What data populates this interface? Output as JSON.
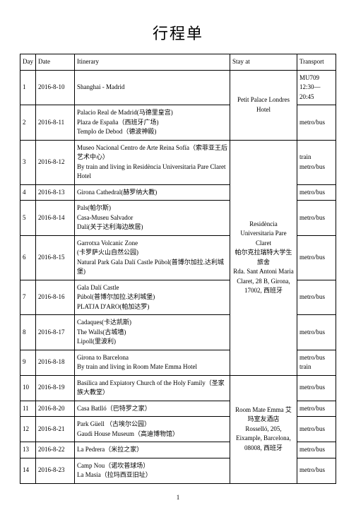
{
  "title": "行程单",
  "headers": {
    "day": "Day",
    "date": "Date",
    "itinerary": "Itinerary",
    "stay": "Stay at",
    "transport": "Transport"
  },
  "stays": {
    "s1": "Petit Palace Londres Hotel",
    "s2": "Residència Universitaria Pare Claret\n帕尔克拉瑞特大学生旅舍\nRda. Sant Antoni Maria Claret, 28 B, Girona, 17002, 西班牙",
    "s3": "Room Mate Emma 艾玛室友酒店\nRosselló, 205, Eixample, Barcelona, 08008, 西班牙"
  },
  "rows": [
    {
      "day": "1",
      "date": "2016-8-10",
      "itin": "Shanghai - Madrid",
      "trans": "MU709 12:30—20:45"
    },
    {
      "day": "2",
      "date": "2016-8-11",
      "itin": "Palacio Real de Madrid(马德里皇宫)\nPlaza de España（西班牙广场)\nTemplo de Debod（德波神殿)",
      "trans": "metro/bus"
    },
    {
      "day": "3",
      "date": "2016-8-12",
      "itin": "Museo Nacional Centro de Arte Reina Sofía（索菲亚王后艺术中心）\nBy train and living in  Residència Universitaria Pare Claret\nHotel",
      "trans": "train\nmetro/bus"
    },
    {
      "day": "4",
      "date": "2016-8-13",
      "itin": "Girona Cathedral(赫罗纳大教)",
      "trans": "metro/bus"
    },
    {
      "day": "5",
      "date": "2016-8-14",
      "itin": "Pals(帕尔斯)\nCasa-Museu Salvador\nDalí(关于达利海边故居)",
      "trans": "metro/bus"
    },
    {
      "day": "6",
      "date": "2016-8-15",
      "itin": "Garrotxa Volcanic Zone\n(卡罗萨火山自然公园)\nNatural Park Gala Dalí Castle Púbol(普博尔加拉.达利城堡)",
      "trans": "metro/bus"
    },
    {
      "day": "7",
      "date": "2016-8-16",
      "itin": "Gala Dalí Castle\nPúbol(普博尔加拉.达利城堡)\nPLATJA D'ARO(帕加达罗)",
      "trans": "metro/bus"
    },
    {
      "day": "8",
      "date": "2016-8-17",
      "itin": "Cadaques(卡达凯斯)\nThe Walls(古城墙)\nLipoll(里波利)",
      "trans": "metro/bus"
    },
    {
      "day": "9",
      "date": "2016-8-18",
      "itin": "Girona to Barcelona\nBy train and living in Room Mate Emma Hotel",
      "trans": "metro/bus\ntrain"
    },
    {
      "day": "10",
      "date": "2016-8-19",
      "itin": "Basilica and Expiatory Church of the Holy Family（圣家族大教堂）",
      "trans": "metro/bus"
    },
    {
      "day": "11",
      "date": "2016-8-20",
      "itin": "Casa Batlló（巴特罗之家）",
      "trans": "metro/bus"
    },
    {
      "day": "12",
      "date": "2016-8-21",
      "itin": "Park Güell （古埃尔公园）\nGaudi House Museum（高迪博物馆）",
      "trans": "metro/bus"
    },
    {
      "day": "13",
      "date": "2016-8-22",
      "itin": "La Pedrera（米拉之家）",
      "trans": "metro/bus"
    },
    {
      "day": "14",
      "date": "2016-8-23",
      "itin": "Camp Nou（诺坎普球场）\nLa Masia（拉玛西亚旧址）",
      "trans": "metro/bus"
    }
  ],
  "pagenum": "1"
}
